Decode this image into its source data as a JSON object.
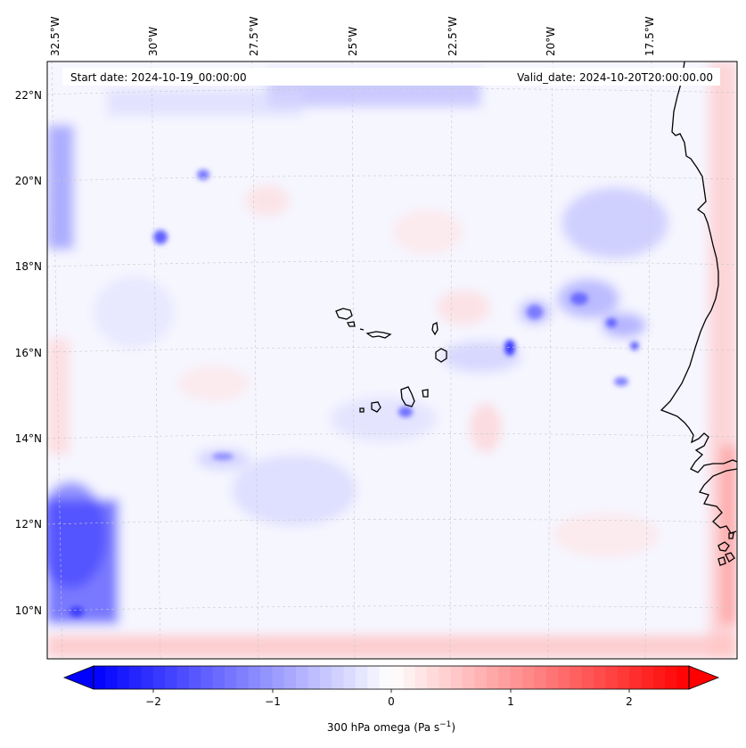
{
  "header": {
    "start_date": "Start date: 2024-10-19_00:00:00",
    "valid_date": "Valid_date: 2024-10-20T20:00:00.00"
  },
  "map": {
    "lon_ticks": [
      "32.5°W",
      "30°W",
      "27.5°W",
      "25°W",
      "22.5°W",
      "20°W",
      "17.5°W"
    ],
    "lat_ticks": [
      "22°N",
      "20°N",
      "18°N",
      "16°N",
      "14°N",
      "12°N",
      "10°N"
    ],
    "grid": true,
    "coastline_color": "#000000"
  },
  "colorbar": {
    "label": "300 hPa omega (Pa s",
    "label_sup": "−1",
    "label_end": ")",
    "ticks": [
      "−2",
      "−1",
      "0",
      "1",
      "2"
    ],
    "range": [
      -2.7,
      2.7
    ],
    "colors": {
      "negative": "#0000ff",
      "zero": "#ffffff",
      "positive": "#ff0000"
    }
  }
}
